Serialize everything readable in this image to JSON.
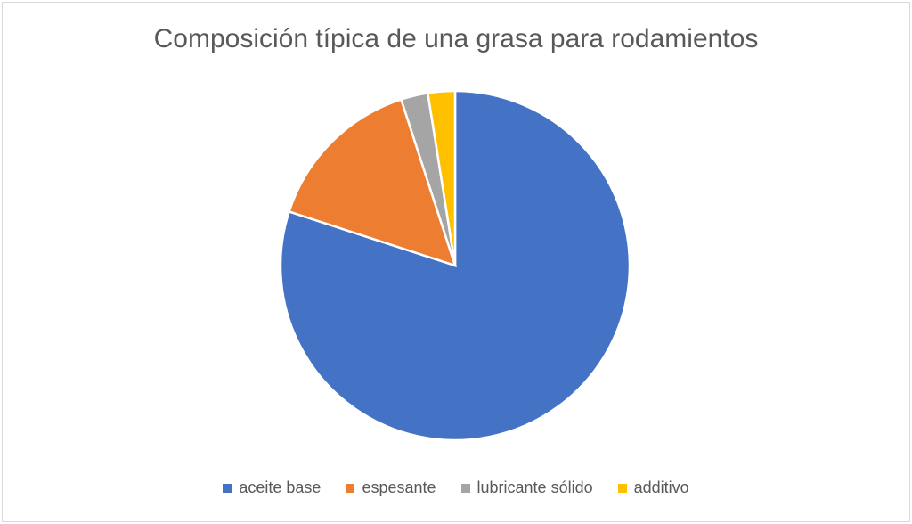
{
  "chart_data": {
    "type": "pie",
    "title": "Composición típica de una grasa para rodamientos",
    "categories": [
      "aceite base",
      "espesante",
      "lubricante sólido",
      "additivo"
    ],
    "values": [
      80,
      15,
      2.5,
      2.5
    ],
    "colors": [
      "#4472C4",
      "#ED7D31",
      "#A5A5A5",
      "#FFC000"
    ],
    "legend": "bottom"
  }
}
